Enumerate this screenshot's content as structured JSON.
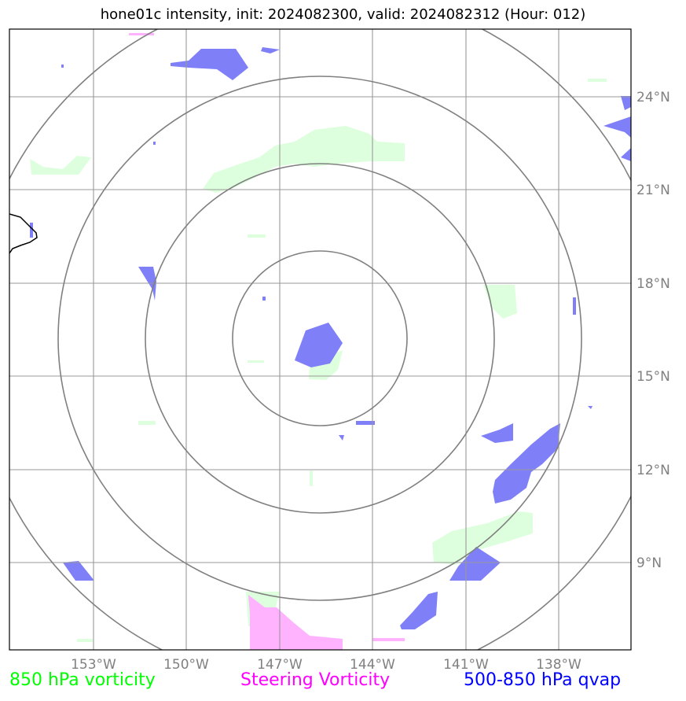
{
  "title": "hone01c intensity, init: 2024082300, valid: 2024082312 (Hour: 012)",
  "axes": {
    "lon_labels": [
      "153°W",
      "150°W",
      "147°W",
      "144°W",
      "141°W",
      "138°W"
    ],
    "lat_labels": [
      "24°N",
      "21°N",
      "18°N",
      "15°N",
      "12°N",
      "9°N"
    ],
    "lon_range": [
      "155.6°W",
      "135.6°W"
    ],
    "lat_range": [
      "6.3°N",
      "26.3°N"
    ],
    "grid": true
  },
  "range_rings": {
    "center": [
      "145.8°W",
      "16.2°N"
    ],
    "count": 4,
    "color": "#808080"
  },
  "fields": [
    {
      "key": "vort850",
      "color": "#ccffcc"
    },
    {
      "key": "steering",
      "color": "#ffb3ff"
    },
    {
      "key": "qvap",
      "color": "#7f7ff7"
    }
  ],
  "legend": {
    "vort850": {
      "label": "850 hPa vorticity",
      "color": "#00ff00"
    },
    "steering": {
      "label": "Steering Vorticity",
      "color": "#ff00ff"
    },
    "qvap": {
      "label": "500-850 hPa qvap",
      "color": "#0000ff"
    }
  }
}
